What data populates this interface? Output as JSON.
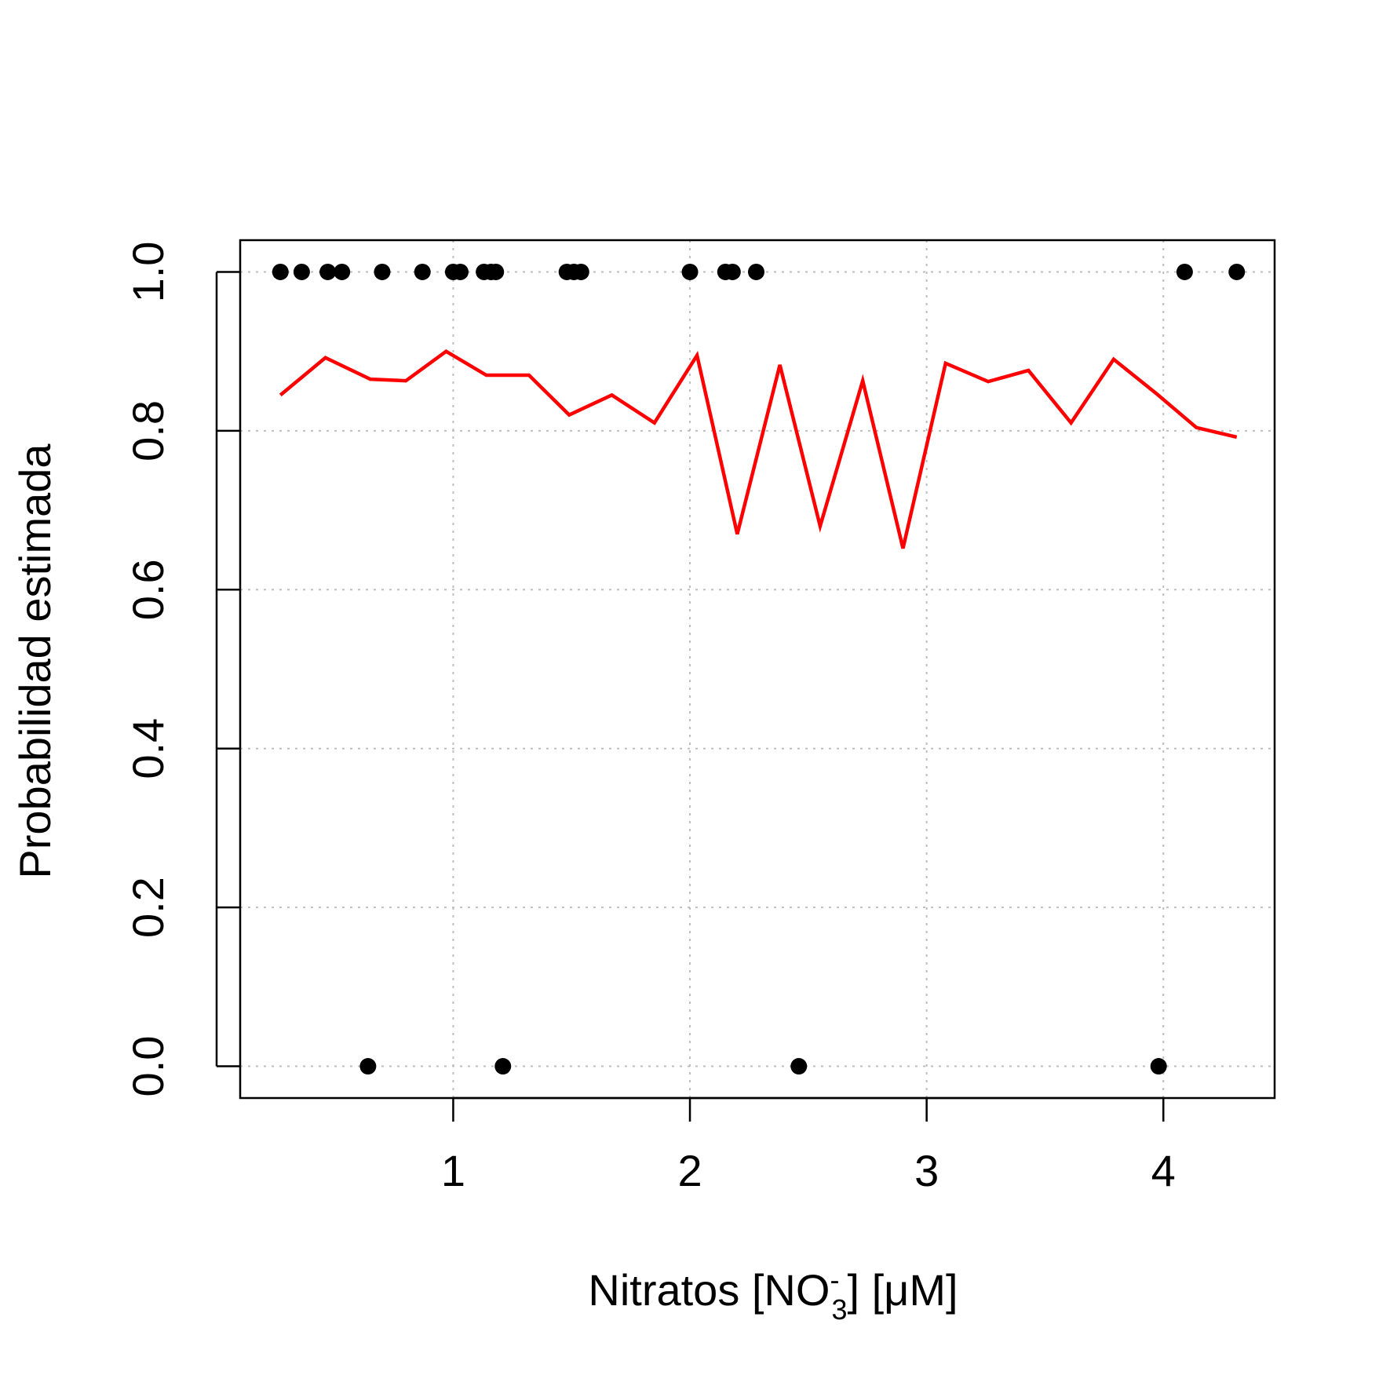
{
  "chart_data": {
    "type": "scatter",
    "title": "",
    "xlabel": {
      "prefix": "Nitratos [NO",
      "superscript": "-",
      "subscript": "3",
      "suffix": "] [μM]"
    },
    "ylabel": "Probabilidad estimada",
    "xlim": [
      0.1,
      4.47
    ],
    "ylim": [
      -0.04,
      1.04
    ],
    "x_ticks": [
      1,
      2,
      3,
      4
    ],
    "x_tick_labels": [
      "1",
      "2",
      "3",
      "4"
    ],
    "y_ticks": [
      0,
      0.2,
      0.4,
      0.6,
      0.8,
      1.0
    ],
    "y_tick_labels": [
      "0.0",
      "0.2",
      "0.4",
      "0.6",
      "0.8",
      "1.0"
    ],
    "grid": true,
    "colors": {
      "points": "#000000",
      "line": "#ff0000",
      "grid": "#bebebe"
    },
    "observed_points": {
      "x": [
        0.27,
        0.36,
        0.47,
        0.53,
        0.7,
        0.87,
        1.0,
        1.03,
        1.13,
        1.16,
        1.18,
        1.48,
        1.51,
        1.54,
        2.0,
        2.15,
        2.18,
        2.28,
        4.09,
        4.31,
        0.64,
        1.21,
        2.46,
        3.98
      ],
      "y": [
        1,
        1,
        1,
        1,
        1,
        1,
        1,
        1,
        1,
        1,
        1,
        1,
        1,
        1,
        1,
        1,
        1,
        1,
        1,
        1,
        0,
        0,
        0,
        0
      ]
    },
    "fitted_line": {
      "x": [
        0.27,
        0.46,
        0.65,
        0.8,
        0.97,
        1.14,
        1.32,
        1.49,
        1.67,
        1.85,
        2.03,
        2.2,
        2.38,
        2.55,
        2.73,
        2.9,
        3.08,
        3.26,
        3.43,
        3.61,
        3.79,
        3.97,
        4.14,
        4.31
      ],
      "y": [
        0.845,
        0.892,
        0.865,
        0.863,
        0.9,
        0.87,
        0.87,
        0.82,
        0.845,
        0.81,
        0.895,
        0.67,
        0.883,
        0.68,
        0.863,
        0.652,
        0.885,
        0.862,
        0.876,
        0.81,
        0.89,
        0.847,
        0.804,
        0.792
      ]
    }
  }
}
